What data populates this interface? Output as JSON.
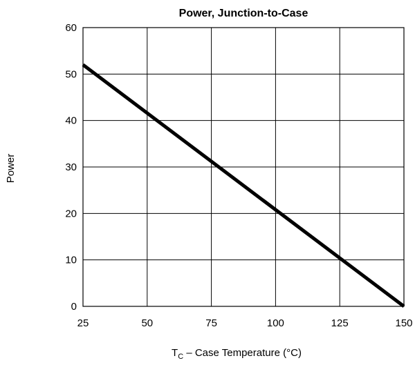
{
  "chart_data": {
    "type": "line",
    "title": "Power, Junction-to-Case",
    "xlabel": {
      "main": "T",
      "subscript": "C",
      "rest": " – Case Temperature (°C)"
    },
    "ylabel": "Power",
    "xlim": [
      25,
      150
    ],
    "ylim": [
      0,
      60
    ],
    "xticks": [
      25,
      50,
      75,
      100,
      125,
      150
    ],
    "yticks": [
      0,
      10,
      20,
      30,
      40,
      50,
      60
    ],
    "grid": true,
    "series": [
      {
        "x": [
          25,
          150
        ],
        "y": [
          52,
          0
        ]
      }
    ]
  }
}
